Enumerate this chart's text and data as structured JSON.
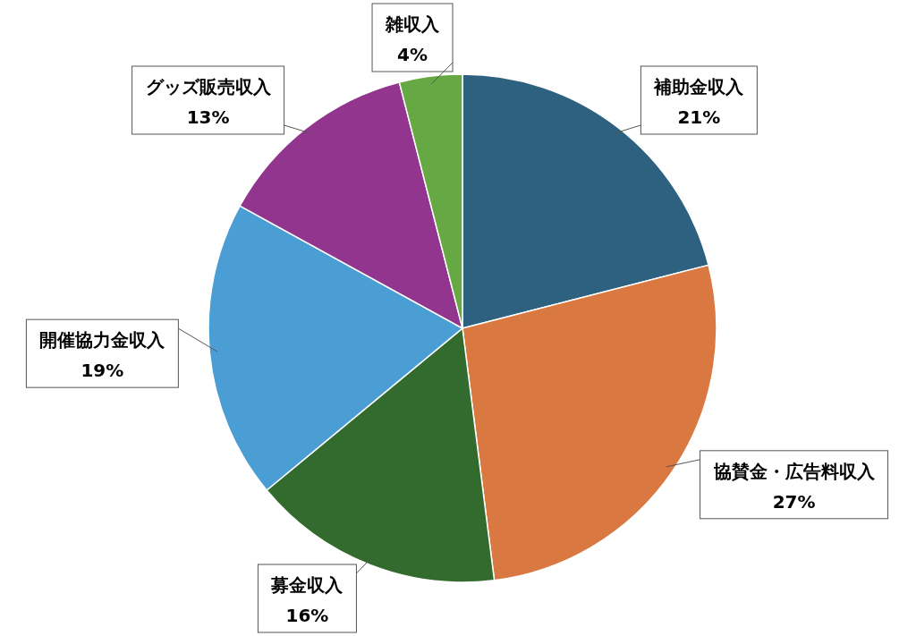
{
  "chart_data": {
    "type": "pie",
    "categories": [
      "補助金収入",
      "協賛金・広告料収入",
      "募金収入",
      "開催協力金収入",
      "グッズ販売収入",
      "雑収入"
    ],
    "values": [
      21,
      27,
      16,
      19,
      13,
      4
    ],
    "value_labels": [
      "21%",
      "27%",
      "16%",
      "19%",
      "13%",
      "4%"
    ],
    "colors": [
      "#2e6080",
      "#d97941",
      "#336b2e",
      "#4a9ed4",
      "#92358f",
      "#66a844"
    ]
  }
}
